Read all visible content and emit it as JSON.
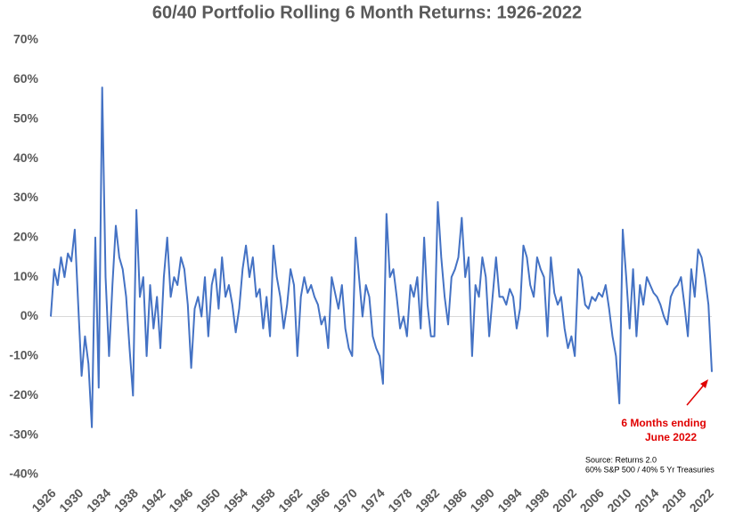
{
  "chart_data": {
    "type": "line",
    "title": "60/40 Portfolio Rolling 6 Month Returns: 1926-2022",
    "x": [
      1926,
      1926.5,
      1927,
      1927.5,
      1928,
      1928.5,
      1929,
      1929.5,
      1930,
      1930.5,
      1931,
      1931.5,
      1932,
      1932.5,
      1933,
      1933.5,
      1934,
      1934.5,
      1935,
      1935.5,
      1936,
      1936.5,
      1937,
      1937.5,
      1938,
      1938.5,
      1939,
      1939.5,
      1940,
      1940.5,
      1941,
      1941.5,
      1942,
      1942.5,
      1943,
      1943.5,
      1944,
      1944.5,
      1945,
      1945.5,
      1946,
      1946.5,
      1947,
      1947.5,
      1948,
      1948.5,
      1949,
      1949.5,
      1950,
      1950.5,
      1951,
      1951.5,
      1952,
      1952.5,
      1953,
      1953.5,
      1954,
      1954.5,
      1955,
      1955.5,
      1956,
      1956.5,
      1957,
      1957.5,
      1958,
      1958.5,
      1959,
      1959.5,
      1960,
      1960.5,
      1961,
      1961.5,
      1962,
      1962.5,
      1963,
      1963.5,
      1964,
      1964.5,
      1965,
      1965.5,
      1966,
      1966.5,
      1967,
      1967.5,
      1968,
      1968.5,
      1969,
      1969.5,
      1970,
      1970.5,
      1971,
      1971.5,
      1972,
      1972.5,
      1973,
      1973.5,
      1974,
      1974.5,
      1975,
      1975.5,
      1976,
      1976.5,
      1977,
      1977.5,
      1978,
      1978.5,
      1979,
      1979.5,
      1980,
      1980.5,
      1981,
      1981.5,
      1982,
      1982.5,
      1983,
      1983.5,
      1984,
      1984.5,
      1985,
      1985.5,
      1986,
      1986.5,
      1987,
      1987.5,
      1988,
      1988.5,
      1989,
      1989.5,
      1990,
      1990.5,
      1991,
      1991.5,
      1992,
      1992.5,
      1993,
      1993.5,
      1994,
      1994.5,
      1995,
      1995.5,
      1996,
      1996.5,
      1997,
      1997.5,
      1998,
      1998.5,
      1999,
      1999.5,
      2000,
      2000.5,
      2001,
      2001.5,
      2002,
      2002.5,
      2003,
      2003.5,
      2004,
      2004.5,
      2005,
      2005.5,
      2006,
      2006.5,
      2007,
      2007.5,
      2008,
      2008.5,
      2009,
      2009.5,
      2010,
      2010.5,
      2011,
      2011.5,
      2012,
      2012.5,
      2013,
      2013.5,
      2014,
      2014.5,
      2015,
      2015.5,
      2016,
      2016.5,
      2017,
      2017.5,
      2018,
      2018.5,
      2019,
      2019.5,
      2020,
      2020.5,
      2021,
      2021.5,
      2022,
      2022.5
    ],
    "series": [
      {
        "color": "#4472c4",
        "values": [
          0,
          12,
          8,
          15,
          10,
          16,
          14,
          22,
          3,
          -15,
          -5,
          -12,
          -28,
          20,
          -18,
          58,
          10,
          -10,
          8,
          23,
          15,
          12,
          5,
          -8,
          -20,
          27,
          5,
          10,
          -10,
          8,
          -3,
          5,
          -8,
          10,
          20,
          5,
          10,
          8,
          15,
          12,
          3,
          -13,
          2,
          5,
          0,
          10,
          -5,
          8,
          12,
          2,
          15,
          5,
          8,
          3,
          -4,
          2,
          12,
          18,
          10,
          15,
          5,
          7,
          -3,
          5,
          -5,
          18,
          10,
          5,
          -3,
          3,
          12,
          8,
          -10,
          5,
          10,
          6,
          8,
          5,
          3,
          -2,
          0,
          -8,
          10,
          6,
          2,
          8,
          -3,
          -8,
          -10,
          20,
          10,
          0,
          8,
          5,
          -5,
          -8,
          -10,
          -17,
          26,
          10,
          12,
          5,
          -3,
          0,
          -5,
          8,
          5,
          10,
          -3,
          20,
          3,
          -5,
          -5,
          29,
          15,
          5,
          -2,
          10,
          12,
          15,
          25,
          10,
          15,
          -10,
          8,
          5,
          15,
          10,
          -5,
          5,
          15,
          5,
          5,
          3,
          7,
          5,
          -3,
          2,
          18,
          15,
          8,
          5,
          15,
          12,
          10,
          -5,
          15,
          6,
          3,
          5,
          -3,
          -8,
          -5,
          -10,
          12,
          10,
          3,
          2,
          5,
          4,
          6,
          5,
          8,
          2,
          -5,
          -10,
          -22,
          22,
          10,
          -3,
          12,
          -5,
          8,
          3,
          10,
          8,
          6,
          5,
          3,
          0,
          -2,
          5,
          7,
          8,
          10,
          3,
          -5,
          12,
          5,
          17,
          15,
          10,
          3,
          -14
        ]
      }
    ],
    "xlim": [
      1926,
      2022.5
    ],
    "xticks": [
      1926,
      1930,
      1934,
      1938,
      1942,
      1946,
      1950,
      1954,
      1958,
      1962,
      1966,
      1970,
      1974,
      1978,
      1982,
      1986,
      1990,
      1994,
      1998,
      2002,
      2006,
      2010,
      2014,
      2018,
      2022
    ],
    "ylim": [
      -40,
      70
    ],
    "yticks": [
      {
        "value": -40,
        "label": "-40%"
      },
      {
        "value": -30,
        "label": "-30%"
      },
      {
        "value": -20,
        "label": "-20%"
      },
      {
        "value": -10,
        "label": "-10%"
      },
      {
        "value": 0,
        "label": "0%"
      },
      {
        "value": 10,
        "label": "10%"
      },
      {
        "value": 20,
        "label": "20%"
      },
      {
        "value": 30,
        "label": "30%"
      },
      {
        "value": 40,
        "label": "40%"
      },
      {
        "value": 50,
        "label": "50%"
      },
      {
        "value": 60,
        "label": "60%"
      },
      {
        "value": 70,
        "label": "70%"
      }
    ],
    "annotation": [
      "6 Months ending",
      "June 2022"
    ],
    "source": [
      "Source: Returns 2.0",
      "60% S&P 500 / 40% 5 Yr Treasuries"
    ]
  }
}
